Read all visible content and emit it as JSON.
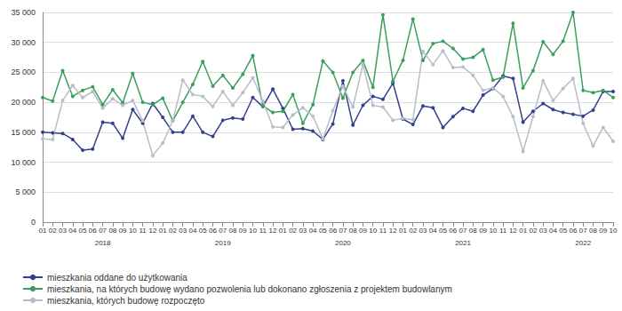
{
  "chart_data": {
    "type": "line",
    "categories": [
      "01",
      "02",
      "03",
      "04",
      "05",
      "06",
      "07",
      "08",
      "09",
      "10",
      "11",
      "12",
      "01",
      "02",
      "03",
      "04",
      "05",
      "06",
      "07",
      "08",
      "09",
      "10",
      "11",
      "12",
      "01",
      "02",
      "03",
      "04",
      "05",
      "06",
      "07",
      "08",
      "09",
      "10",
      "11",
      "12",
      "01",
      "02",
      "03",
      "04",
      "05",
      "06",
      "07",
      "08",
      "09",
      "10",
      "11",
      "12",
      "01",
      "02",
      "03",
      "04",
      "05",
      "06",
      "07",
      "08",
      "09",
      "10"
    ],
    "year_categories": [
      null,
      null,
      null,
      null,
      null,
      null,
      "2018",
      null,
      null,
      null,
      null,
      null,
      null,
      null,
      null,
      null,
      null,
      null,
      "2019",
      null,
      null,
      null,
      null,
      null,
      null,
      null,
      null,
      null,
      null,
      null,
      "2020",
      null,
      null,
      null,
      null,
      null,
      null,
      null,
      null,
      null,
      null,
      null,
      "2021",
      null,
      null,
      null,
      null,
      null,
      null,
      null,
      null,
      null,
      null,
      null,
      "2022",
      null,
      null,
      null
    ],
    "series": [
      {
        "name": "mieszkania oddane do użytkowania",
        "color": "#34408f",
        "values": [
          15000,
          14900,
          14800,
          13800,
          12000,
          12200,
          16700,
          16500,
          14000,
          18800,
          16500,
          19800,
          17500,
          15000,
          15000,
          17700,
          15000,
          14300,
          17000,
          17400,
          17200,
          20800,
          19300,
          22200,
          19000,
          15500,
          15600,
          15200,
          13800,
          16400,
          23600,
          16200,
          19500,
          21000,
          20500,
          23200,
          17200,
          16300,
          19400,
          19100,
          15800,
          17600,
          19000,
          18500,
          21200,
          22300,
          24400,
          24000,
          16700,
          18500,
          19800,
          18800,
          18300,
          18000,
          17700,
          18700,
          21800,
          21800
        ]
      },
      {
        "name": "mieszkania, na których budowę wydano pozwolenia lub dokonano zgłoszenia z projektem budowlanym",
        "color": "#3a9f5c",
        "values": [
          20800,
          20200,
          25300,
          21000,
          22000,
          22600,
          19600,
          22100,
          19900,
          24800,
          20000,
          19600,
          20700,
          16900,
          20000,
          23000,
          26800,
          22700,
          24500,
          22400,
          24700,
          27800,
          19400,
          18300,
          18500,
          21300,
          16500,
          19600,
          26900,
          25000,
          20700,
          25000,
          27000,
          22500,
          34600,
          23500,
          27000,
          33900,
          27000,
          29800,
          30200,
          29000,
          27200,
          27500,
          28800,
          23700,
          24200,
          33200,
          22400,
          25300,
          30100,
          28000,
          30200,
          35000,
          22000,
          21600,
          22000,
          20800
        ]
      },
      {
        "name": "mieszkania, których budowę rozpoczęto",
        "color": "#b9bdc7",
        "values": [
          13900,
          13800,
          20300,
          22800,
          20800,
          21800,
          19000,
          20600,
          19500,
          20300,
          16900,
          11100,
          13200,
          16900,
          23700,
          21300,
          21000,
          19300,
          21800,
          19500,
          21600,
          24100,
          20200,
          15900,
          15800,
          17900,
          19100,
          17700,
          13900,
          18600,
          22700,
          19200,
          26300,
          19500,
          19200,
          17000,
          17300,
          17100,
          28500,
          26300,
          28600,
          25800,
          25900,
          24500,
          22000,
          22400,
          21000,
          17600,
          11800,
          17600,
          23600,
          20300,
          22300,
          24000,
          16500,
          12700,
          15800,
          13500
        ]
      }
    ],
    "ylim": [
      0,
      35000
    ],
    "yticks": [
      0,
      {
        "value": 5000,
        "label": "5 000"
      },
      {
        "value": 10000,
        "label": "10 000"
      },
      {
        "value": 15000,
        "label": "15 000"
      },
      {
        "value": 20000,
        "label": "20 000"
      },
      {
        "value": 25000,
        "label": "25 000"
      },
      {
        "value": 30000,
        "label": "30 000"
      },
      {
        "value": 35000,
        "label": "35 000"
      }
    ],
    "grid": true,
    "legend": "lower left",
    "marker": "circle"
  }
}
